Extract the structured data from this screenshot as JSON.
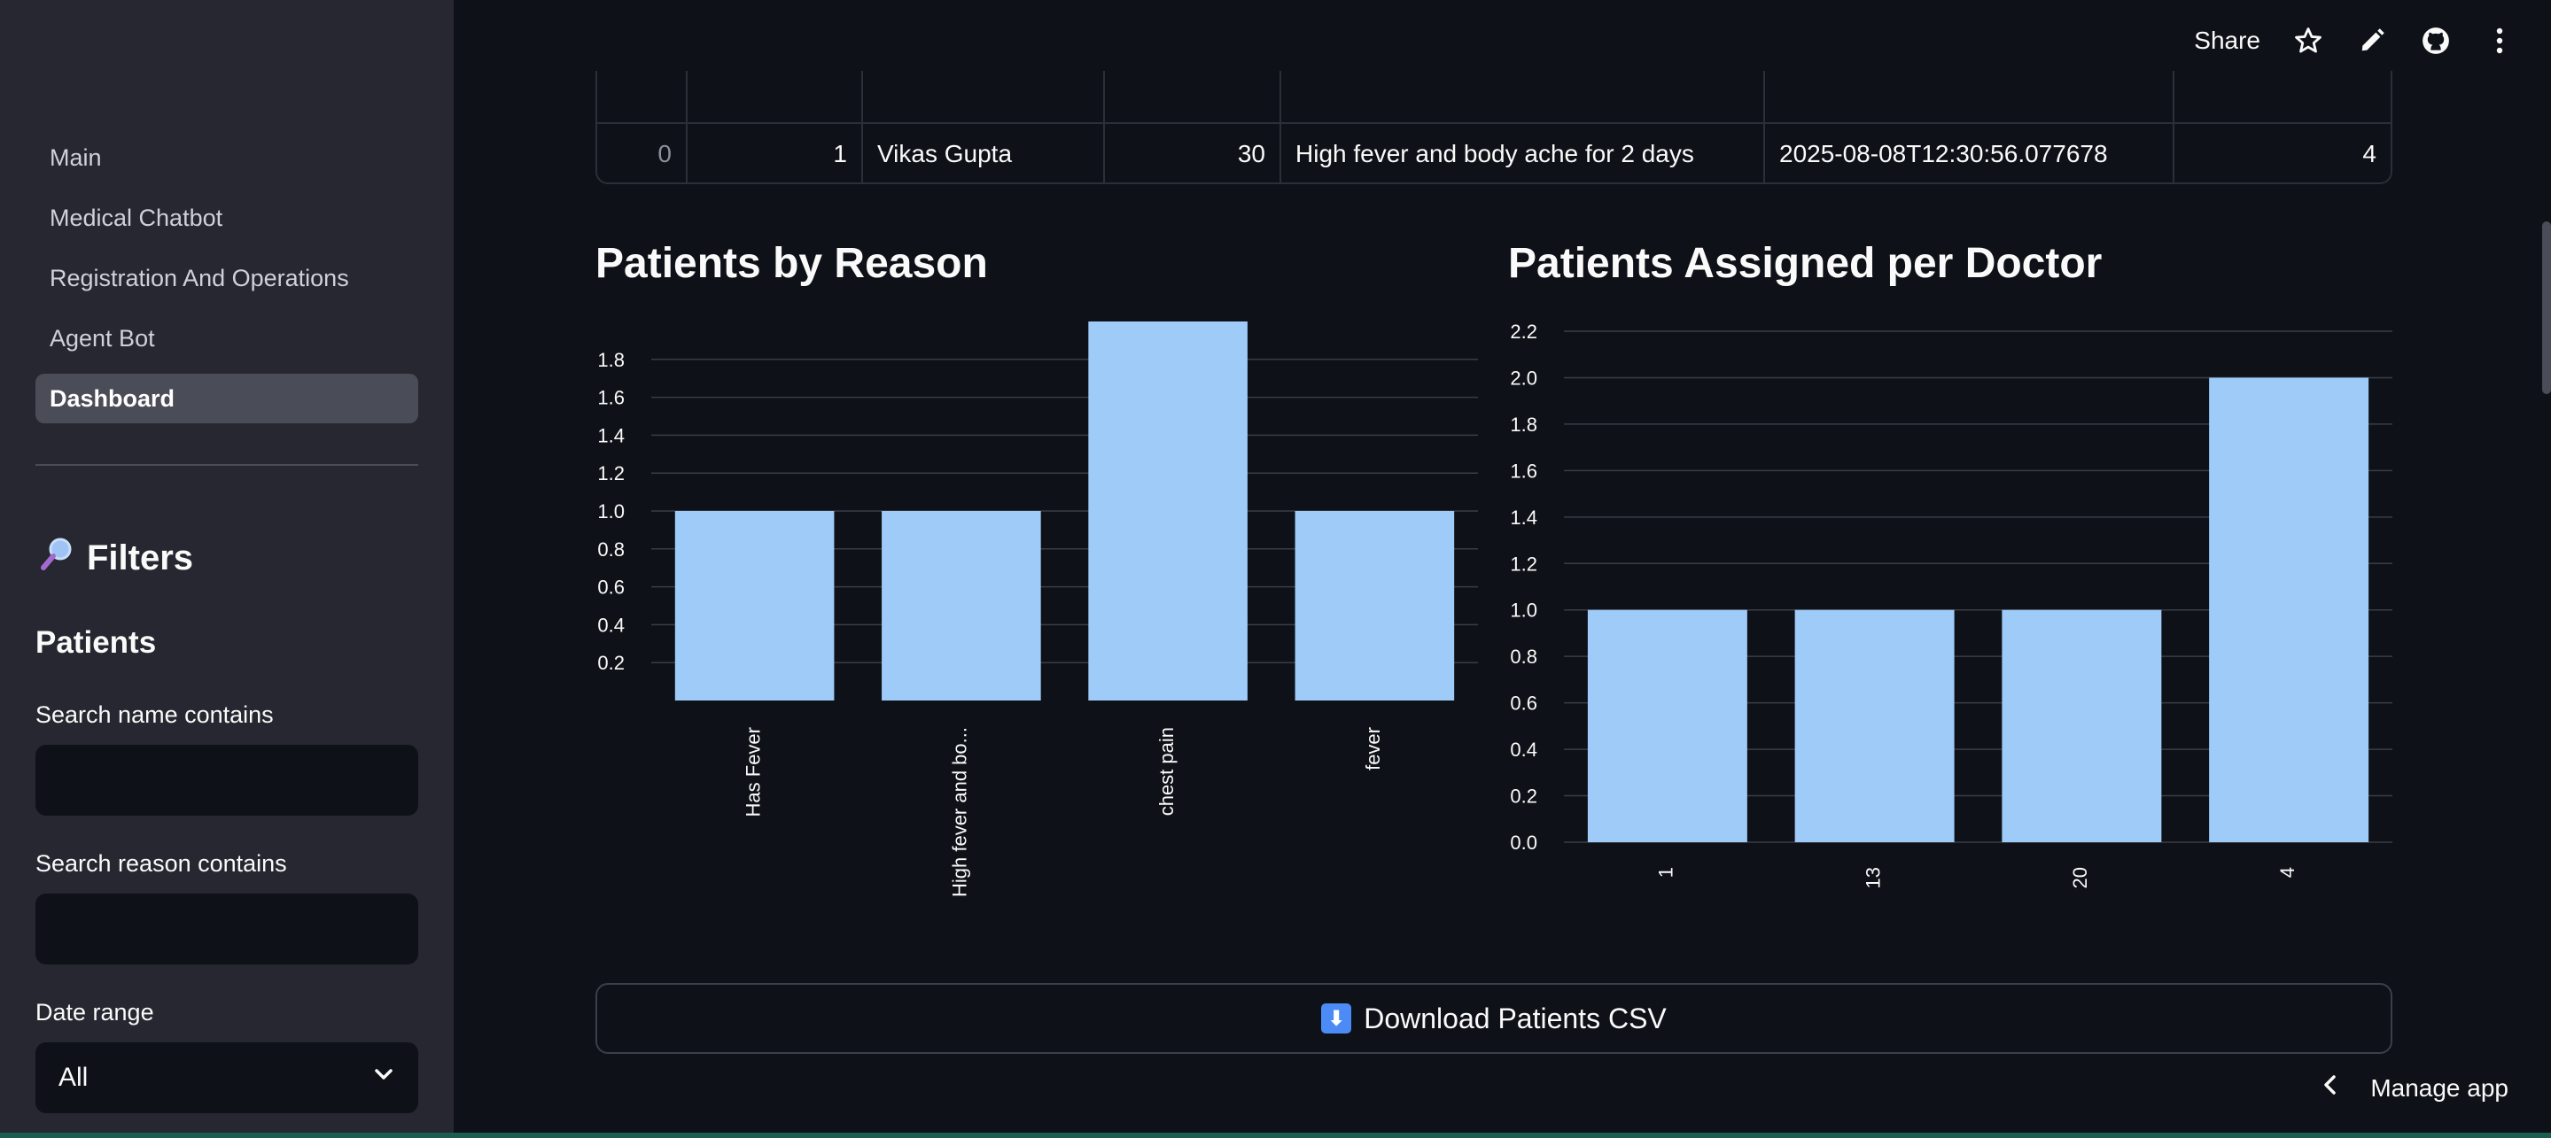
{
  "sidebar": {
    "nav": [
      {
        "label": "Main",
        "active": false
      },
      {
        "label": "Medical Chatbot",
        "active": false
      },
      {
        "label": "Registration And Operations",
        "active": false
      },
      {
        "label": "Agent Bot",
        "active": false
      },
      {
        "label": "Dashboard",
        "active": true
      }
    ],
    "filters_title": "Filters",
    "filters_icon": "magnifier-icon",
    "section_title": "Patients",
    "search_name_label": "Search name contains",
    "search_name_value": "",
    "search_reason_label": "Search reason contains",
    "search_reason_value": "",
    "date_range_label": "Date range",
    "date_range_value": "All"
  },
  "toolbar": {
    "share_label": "Share",
    "icons": [
      "star-icon",
      "pencil-icon",
      "github-icon",
      "more-icon"
    ]
  },
  "table": {
    "row": [
      "0",
      "1",
      "Vikas Gupta",
      "30",
      "High fever and body ache for 2 days",
      "2025-08-08T12:30:56.077678",
      "4"
    ]
  },
  "chart_data": [
    {
      "type": "bar",
      "title": "Patients by Reason",
      "categories": [
        "Has Fever",
        "High fever and bo...",
        "chest pain",
        "fever"
      ],
      "values": [
        1,
        1,
        2,
        1
      ],
      "ylim": [
        0,
        2
      ],
      "yticks": [
        "0.2",
        "0.4",
        "0.6",
        "0.8",
        "1.0",
        "1.2",
        "1.4",
        "1.6",
        "1.8"
      ],
      "grid": true,
      "bar_color": "#9ecbf8"
    },
    {
      "type": "bar",
      "title": "Patients Assigned per Doctor",
      "categories": [
        "1",
        "13",
        "20",
        "4"
      ],
      "values": [
        1,
        1,
        1,
        2
      ],
      "ylim": [
        0,
        2.2
      ],
      "yticks": [
        "0.0",
        "0.2",
        "0.4",
        "0.6",
        "0.8",
        "1.0",
        "1.2",
        "1.4",
        "1.6",
        "1.8",
        "2.0",
        "2.2"
      ],
      "grid": true,
      "bar_color": "#9ecbf8"
    }
  ],
  "download_label": "Download Patients CSV",
  "manage_app_label": "Manage app",
  "colors": {
    "background": "#0e1117",
    "sidebar": "#262730",
    "bar": "#9ecbf8",
    "accent": "#4c8bf5"
  }
}
